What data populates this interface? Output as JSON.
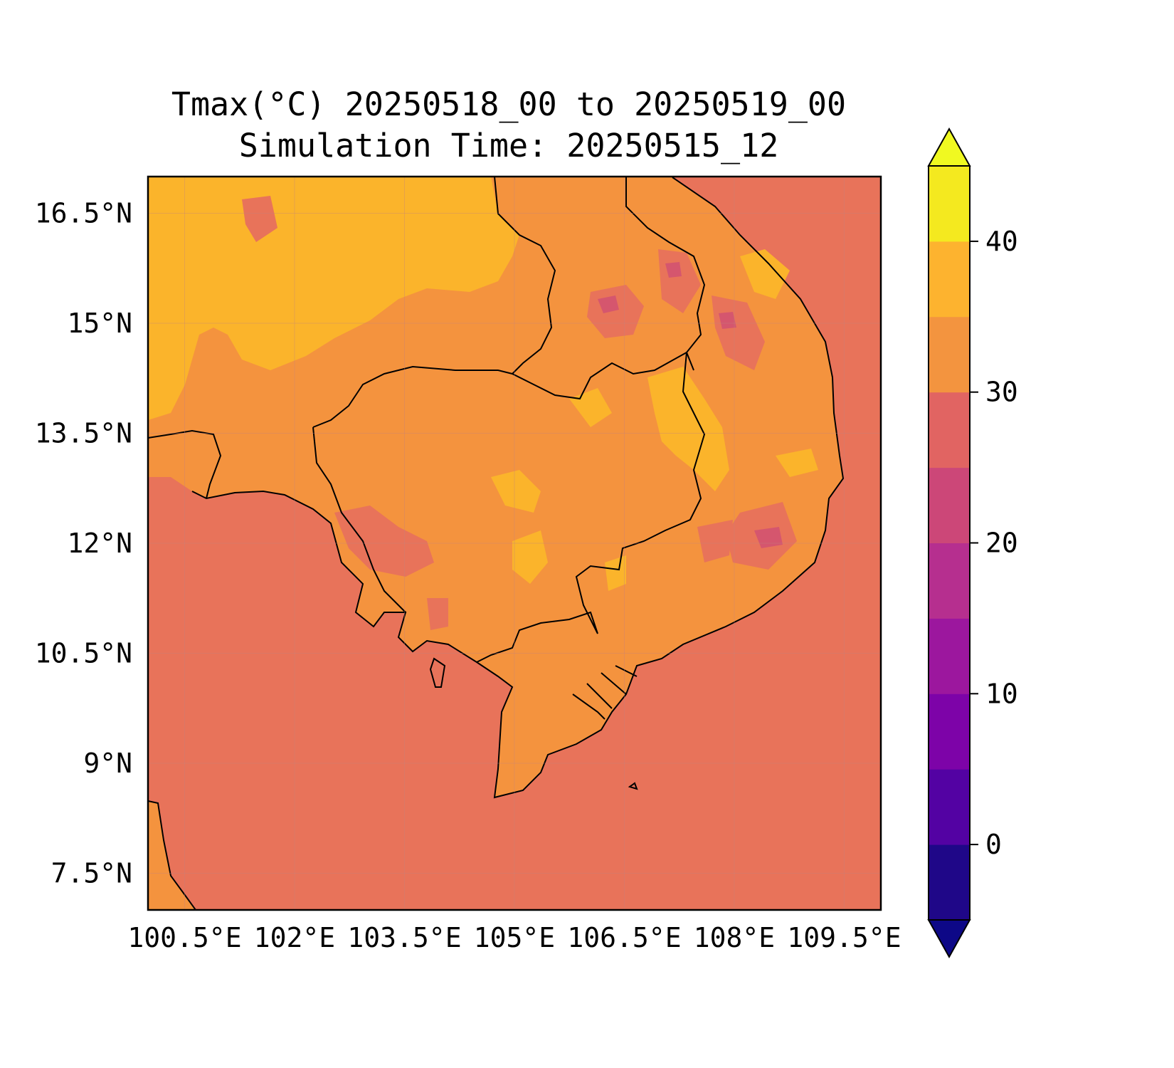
{
  "title": {
    "line1": "Tmax(°C) 20250518_00 to 20250519_00",
    "line2": "Simulation Time: 20250515_12"
  },
  "map": {
    "variable": "Tmax",
    "units": "°C",
    "lon_range": [
      100.0,
      110.0
    ],
    "lat_range": [
      7.0,
      17.0
    ],
    "x_ticks": [
      {
        "value": 100.5,
        "label": "100.5°E"
      },
      {
        "value": 102.0,
        "label": "102°E"
      },
      {
        "value": 103.5,
        "label": "103.5°E"
      },
      {
        "value": 105.0,
        "label": "105°E"
      },
      {
        "value": 106.5,
        "label": "106.5°E"
      },
      {
        "value": 108.0,
        "label": "108°E"
      },
      {
        "value": 109.5,
        "label": "109.5°E"
      }
    ],
    "y_ticks": [
      {
        "value": 16.5,
        "label": "16.5°N"
      },
      {
        "value": 15.0,
        "label": "15°N"
      },
      {
        "value": 13.5,
        "label": "13.5°N"
      },
      {
        "value": 12.0,
        "label": "12°N"
      },
      {
        "value": 10.5,
        "label": "10.5°N"
      },
      {
        "value": 9.0,
        "label": "9°N"
      },
      {
        "value": 7.5,
        "label": "7.5°N"
      }
    ],
    "colors": {
      "sea": "#e8735a",
      "land_hot": "#f4933e",
      "land_very_hot": "#fbb42b",
      "cool_patch": "#d5566e",
      "coastline": "#000000"
    }
  },
  "colorbar": {
    "levels": [
      -5,
      0,
      5,
      10,
      15,
      20,
      25,
      30,
      35,
      40,
      45
    ],
    "colors": [
      "#1f0788",
      "#5302a3",
      "#7d03a8",
      "#9c179e",
      "#b62f8f",
      "#cc4778",
      "#e16462",
      "#f3943f",
      "#fdb32f",
      "#f4e91f"
    ],
    "extend_low_color": "#0d0887",
    "extend_high_color": "#f0f921",
    "ticks": [
      {
        "value": 0,
        "label": "0"
      },
      {
        "value": 10,
        "label": "10"
      },
      {
        "value": 20,
        "label": "20"
      },
      {
        "value": 30,
        "label": "30"
      },
      {
        "value": 40,
        "label": "40"
      }
    ]
  }
}
